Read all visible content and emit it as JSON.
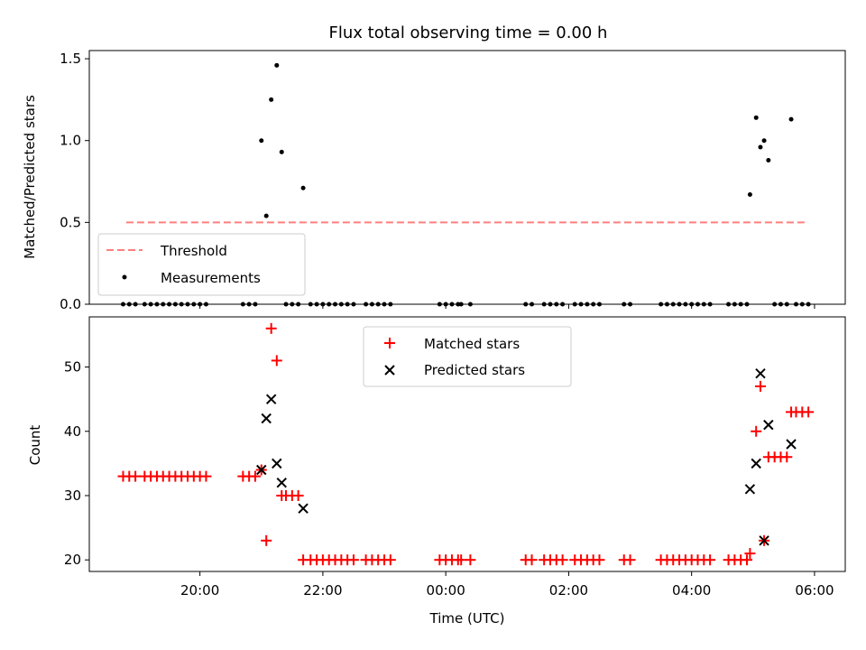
{
  "title": "Flux total observing time = 0.00 h",
  "xlabel": "Time (UTC)",
  "x_tick_labels": [
    {
      "hour": 20,
      "label": "20:00"
    },
    {
      "hour": 22,
      "label": "22:00"
    },
    {
      "hour": 24,
      "label": "00:00"
    },
    {
      "hour": 26,
      "label": "02:00"
    },
    {
      "hour": 28,
      "label": "04:00"
    },
    {
      "hour": 30,
      "label": "06:00"
    }
  ],
  "chart_data": [
    {
      "type": "scatter",
      "ylabel": "Matched/Predicted stars",
      "xlim": [
        18.2,
        30.5
      ],
      "ylim": [
        0,
        1.55
      ],
      "y_ticks": [
        0,
        0.5,
        1.0,
        1.5
      ],
      "y_tick_labels": [
        "0.0",
        "0.5",
        "1.0",
        "1.5"
      ],
      "legend_position": "lower-left",
      "threshold": {
        "name": "Threshold",
        "color": "#ff7f7f",
        "style": "dashed",
        "x_range": [
          18.8,
          29.85
        ],
        "y": 0.5
      },
      "series": [
        {
          "name": "Measurements",
          "color": "#000000",
          "marker": "dot",
          "x": [
            18.75,
            18.85,
            18.95,
            19.1,
            19.2,
            19.3,
            19.4,
            19.5,
            19.6,
            19.7,
            19.8,
            19.9,
            20.0,
            20.1,
            20.7,
            20.8,
            20.9,
            21.0,
            21.08,
            21.16,
            21.25,
            21.33,
            21.4,
            21.5,
            21.6,
            21.68,
            21.8,
            21.9,
            22.0,
            22.1,
            22.2,
            22.3,
            22.4,
            22.5,
            22.7,
            22.8,
            22.9,
            23.0,
            23.1,
            23.9,
            24.0,
            24.1,
            24.2,
            24.25,
            24.4,
            25.3,
            25.4,
            25.6,
            25.7,
            25.8,
            25.9,
            26.1,
            26.2,
            26.3,
            26.4,
            26.5,
            26.9,
            27.0,
            27.5,
            27.6,
            27.7,
            27.8,
            27.9,
            28.0,
            28.1,
            28.2,
            28.3,
            28.6,
            28.7,
            28.8,
            28.9,
            28.95,
            29.05,
            29.12,
            29.18,
            29.25,
            29.35,
            29.45,
            29.55,
            29.62,
            29.7,
            29.8,
            29.9
          ],
          "y": [
            0,
            0,
            0,
            0,
            0,
            0,
            0,
            0,
            0,
            0,
            0,
            0,
            0,
            0,
            0,
            0,
            0,
            1.0,
            0.54,
            1.25,
            1.46,
            0.93,
            0,
            0,
            0,
            0.71,
            0,
            0,
            0,
            0,
            0,
            0,
            0,
            0,
            0,
            0,
            0,
            0,
            0,
            0,
            0,
            0,
            0,
            0,
            0,
            0,
            0,
            0,
            0,
            0,
            0,
            0,
            0,
            0,
            0,
            0,
            0,
            0,
            0,
            0,
            0,
            0,
            0,
            0,
            0,
            0,
            0,
            0,
            0,
            0,
            0,
            0.67,
            1.14,
            0.96,
            1.0,
            0.88,
            0,
            0,
            0,
            1.13,
            0,
            0,
            0
          ]
        }
      ]
    },
    {
      "type": "scatter",
      "ylabel": "Count",
      "xlim": [
        18.2,
        30.5
      ],
      "ylim": [
        18.2,
        57.8
      ],
      "y_ticks": [
        20,
        30,
        40,
        50
      ],
      "y_tick_labels": [
        "20",
        "30",
        "40",
        "50"
      ],
      "legend_position": "upper-center",
      "series": [
        {
          "name": "Matched stars",
          "color": "#ff0000",
          "marker": "plus",
          "x": [
            18.75,
            18.85,
            18.95,
            19.1,
            19.2,
            19.3,
            19.4,
            19.5,
            19.6,
            19.7,
            19.8,
            19.9,
            20.0,
            20.1,
            20.7,
            20.8,
            20.9,
            21.0,
            21.08,
            21.16,
            21.25,
            21.33,
            21.4,
            21.5,
            21.6,
            21.68,
            21.8,
            21.9,
            22.0,
            22.1,
            22.2,
            22.3,
            22.4,
            22.5,
            22.7,
            22.8,
            22.9,
            23.0,
            23.1,
            23.9,
            24.0,
            24.1,
            24.2,
            24.25,
            24.4,
            25.3,
            25.4,
            25.6,
            25.7,
            25.8,
            25.9,
            26.1,
            26.2,
            26.3,
            26.4,
            26.5,
            26.9,
            27.0,
            27.5,
            27.6,
            27.7,
            27.8,
            27.9,
            28.0,
            28.1,
            28.2,
            28.3,
            28.6,
            28.7,
            28.8,
            28.9,
            28.95,
            29.05,
            29.12,
            29.18,
            29.25,
            29.35,
            29.45,
            29.55,
            29.62,
            29.7,
            29.8,
            29.9
          ],
          "y": [
            33,
            33,
            33,
            33,
            33,
            33,
            33,
            33,
            33,
            33,
            33,
            33,
            33,
            33,
            33,
            33,
            33,
            34,
            23,
            56,
            51,
            30,
            30,
            30,
            30,
            20,
            20,
            20,
            20,
            20,
            20,
            20,
            20,
            20,
            20,
            20,
            20,
            20,
            20,
            20,
            20,
            20,
            20,
            20,
            20,
            20,
            20,
            20,
            20,
            20,
            20,
            20,
            20,
            20,
            20,
            20,
            20,
            20,
            20,
            20,
            20,
            20,
            20,
            20,
            20,
            20,
            20,
            20,
            20,
            20,
            20,
            21,
            40,
            47,
            23,
            36,
            36,
            36,
            36,
            43,
            43,
            43,
            43
          ]
        },
        {
          "name": "Predicted stars",
          "color": "#000000",
          "marker": "x",
          "x": [
            21.0,
            21.08,
            21.16,
            21.25,
            21.33,
            21.68,
            28.95,
            29.05,
            29.12,
            29.18,
            29.25,
            29.62
          ],
          "y": [
            34,
            42,
            45,
            35,
            32,
            28,
            31,
            35,
            49,
            23,
            41,
            38
          ]
        }
      ]
    }
  ]
}
